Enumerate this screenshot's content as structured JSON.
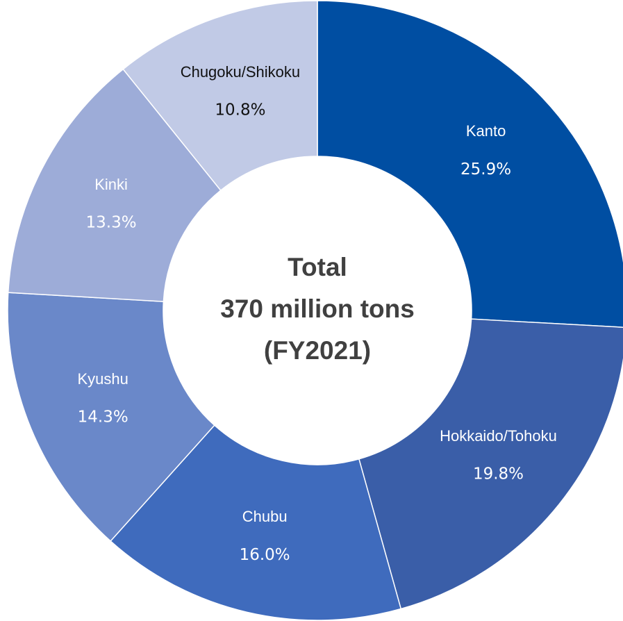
{
  "chart_data": {
    "type": "donut",
    "categories": [
      "Kanto",
      "Hokkaido/Tohoku",
      "Chubu",
      "Kyushu",
      "Kinki",
      "Chugoku/Shikoku"
    ],
    "values": [
      25.9,
      19.8,
      16.0,
      14.3,
      13.3,
      10.8
    ],
    "value_labels": [
      "25.9%",
      "19.8%",
      "16.0%",
      "14.3%",
      "13.3%",
      "10.8%"
    ],
    "colors": [
      "#004ea2",
      "#3a5ea8",
      "#3f6bbd",
      "#6a88c9",
      "#9dacd8",
      "#c1cae6"
    ],
    "label_colors": [
      "#ffffff",
      "#ffffff",
      "#ffffff",
      "#ffffff",
      "#ffffff",
      "#111111"
    ],
    "center_text": [
      "Total",
      "370 million tons",
      "(FY2021)"
    ]
  }
}
